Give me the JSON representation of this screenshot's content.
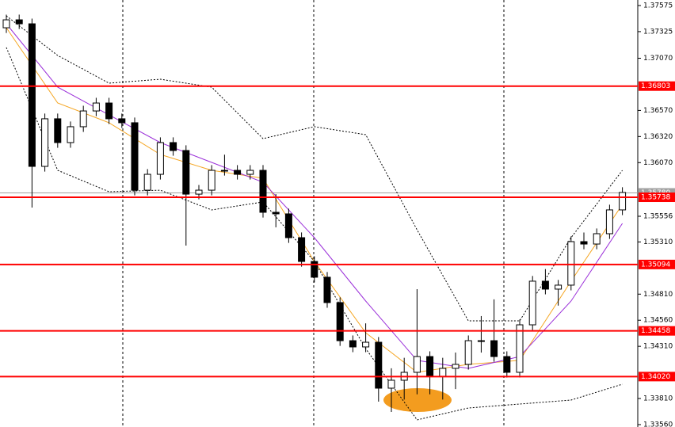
{
  "chart_data": {
    "type": "candlestick",
    "ylim": [
      1.33537,
      1.37628
    ],
    "yticks": [
      1.37575,
      1.37325,
      {
        "value": 1.3707,
        "label": "1.37070"
      },
      {
        "value": 1.3657,
        "label": "1.36570"
      },
      {
        "value": 1.3632,
        "label": "1.36320"
      },
      {
        "value": 1.3607,
        "label": "1.36070"
      },
      1.35556,
      {
        "value": 1.3531,
        "label": "1.35310"
      },
      {
        "value": 1.3481,
        "label": "1.34810"
      },
      {
        "value": 1.3456,
        "label": "1.34560"
      },
      {
        "value": 1.3431,
        "label": "1.34310"
      },
      {
        "value": 1.3381,
        "label": "1.33810"
      },
      {
        "value": 1.3356,
        "label": "1.33560"
      }
    ],
    "open": [
      1.37362,
      1.37438,
      1.374,
      1.36034,
      1.3649,
      1.36262,
      1.36414,
      1.36565,
      1.36641,
      1.3649,
      1.36452,
      1.35806,
      1.35958,
      1.36262,
      1.36186,
      1.35768,
      1.35806,
      1.35996,
      1.35996,
      1.35958,
      1.35996,
      1.35594,
      1.35579,
      1.35351,
      1.35123,
      1.34972,
      1.34729,
      1.34364,
      1.34304,
      1.34349,
      1.33909,
      1.33985,
      1.34061,
      1.34212,
      1.34023,
      1.34099,
      1.34137,
      1.34364,
      1.34364,
      1.34212,
      1.34061,
      1.34516,
      1.34934,
      1.34858,
      1.34896,
      1.35313,
      1.3529,
      1.35389,
      1.35617
    ],
    "high": [
      1.37488,
      1.37488,
      1.3745,
      1.3654,
      1.3654,
      1.36464,
      1.36615,
      1.36691,
      1.36691,
      1.3654,
      1.36502,
      1.36008,
      1.36312,
      1.36312,
      1.36236,
      1.35856,
      1.36046,
      1.36146,
      1.36046,
      1.36046,
      1.36046,
      1.35768,
      1.35629,
      1.35401,
      1.35173,
      1.35022,
      1.34779,
      1.34414,
      1.3453,
      1.34399,
      1.341,
      1.342,
      1.34858,
      1.34262,
      1.342,
      1.3425,
      1.34414,
      1.346,
      1.3476,
      1.34262,
      1.34566,
      1.34984,
      1.3505,
      1.34946,
      1.35363,
      1.354,
      1.35439,
      1.35667,
      1.35834
    ],
    "low": [
      1.37312,
      1.3735,
      1.35639,
      1.35984,
      1.36212,
      1.36212,
      1.36364,
      1.36515,
      1.3644,
      1.36402,
      1.35756,
      1.35756,
      1.35908,
      1.36136,
      1.35275,
      1.35718,
      1.35756,
      1.35946,
      1.35908,
      1.35908,
      1.35544,
      1.3545,
      1.35301,
      1.35073,
      1.34922,
      1.34679,
      1.34314,
      1.34254,
      1.34254,
      1.3378,
      1.33681,
      1.338,
      1.3385,
      1.3385,
      1.338,
      1.339,
      1.34087,
      1.3425,
      1.34162,
      1.34011,
      1.34011,
      1.34466,
      1.34808,
      1.347,
      1.34846,
      1.3524,
      1.3524,
      1.35339,
      1.35567
    ],
    "close": [
      1.37438,
      1.374,
      1.36034,
      1.3649,
      1.36262,
      1.36414,
      1.36565,
      1.36641,
      1.3649,
      1.36452,
      1.35806,
      1.35958,
      1.36262,
      1.36186,
      1.35768,
      1.35806,
      1.35996,
      1.35996,
      1.35958,
      1.35996,
      1.35594,
      1.35579,
      1.35351,
      1.35123,
      1.34972,
      1.34729,
      1.34364,
      1.34304,
      1.34349,
      1.33909,
      1.33985,
      1.34061,
      1.34212,
      1.34023,
      1.34099,
      1.34137,
      1.34364,
      1.34364,
      1.34212,
      1.34061,
      1.34516,
      1.34934,
      1.34858,
      1.34896,
      1.35313,
      1.3529,
      1.35389,
      1.35617,
      1.35784
    ],
    "overlays": [
      {
        "color": "#f5a623",
        "dash": false,
        "x": [
          0,
          4,
          8,
          12,
          16,
          20,
          24,
          28,
          32,
          36,
          40,
          44,
          48
        ],
        "values": [
          1.37362,
          1.36641,
          1.36452,
          1.36148,
          1.35996,
          1.3592,
          1.35123,
          1.3444,
          1.34061,
          1.34137,
          1.34175,
          1.34934,
          1.3567
        ]
      },
      {
        "color": "#9b30d9",
        "dash": false,
        "x": [
          0,
          4,
          8,
          12,
          16,
          20,
          24,
          28,
          32,
          36,
          40,
          44,
          48
        ],
        "values": [
          1.374,
          1.36793,
          1.36527,
          1.36262,
          1.36072,
          1.35882,
          1.35351,
          1.34744,
          1.34175,
          1.34099,
          1.34212,
          1.34744,
          1.35488
        ]
      },
      {
        "color": "#000000",
        "dash": true,
        "x": [
          0,
          4,
          8,
          12,
          16,
          20,
          24,
          28,
          32,
          36,
          40,
          44,
          48
        ],
        "values": [
          1.37476,
          1.37097,
          1.36831,
          1.36869,
          1.36793,
          1.363,
          1.36414,
          1.36338,
          1.35427,
          1.34554,
          1.34554,
          1.35351,
          1.35996
        ]
      },
      {
        "color": "#000000",
        "dash": true,
        "x": [
          0,
          4,
          8,
          12,
          16,
          20,
          24,
          28,
          32,
          36,
          40,
          44,
          48
        ],
        "values": [
          1.37173,
          1.35996,
          1.35791,
          1.35806,
          1.35617,
          1.35693,
          1.35123,
          1.34288,
          1.33605,
          1.33719,
          1.33757,
          1.33795,
          1.33947
        ]
      }
    ],
    "levels": [
      1.36803,
      1.35738,
      1.35094,
      1.34458,
      {
        "value": 1.3402,
        "label": "1.34020"
      }
    ],
    "level_color": "#ff0000",
    "current_price": {
      "value": 1.3578,
      "label": "1.35780"
    }
  }
}
